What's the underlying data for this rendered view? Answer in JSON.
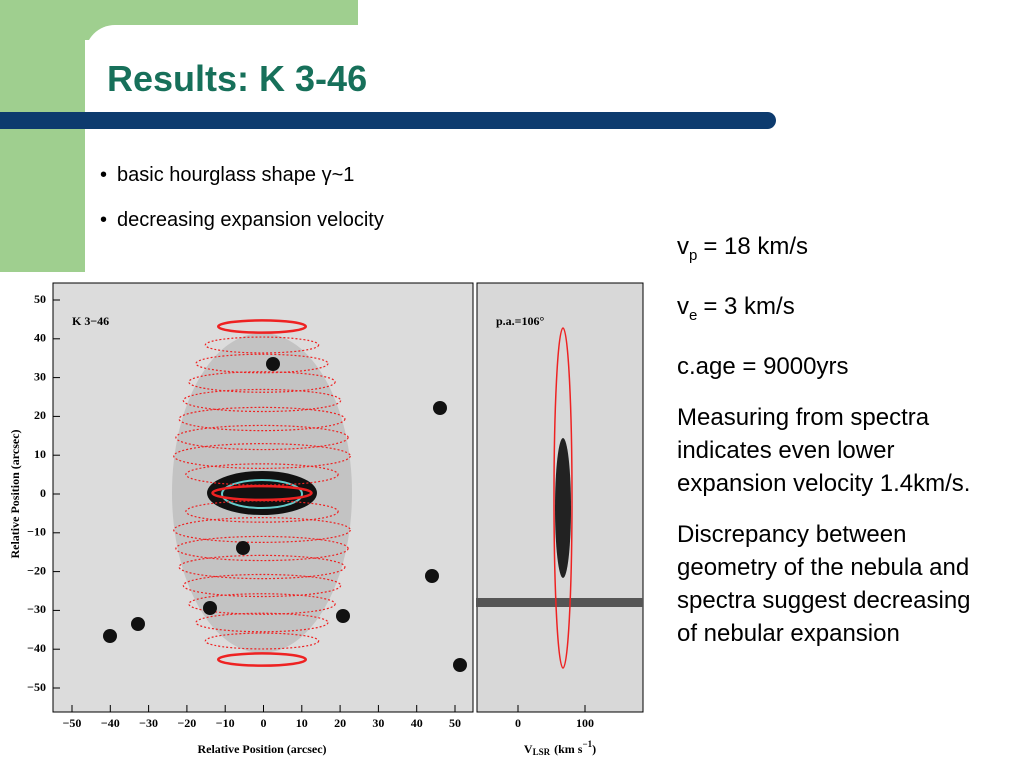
{
  "title": "Results: K 3-46",
  "bullets": [
    "basic hourglass shape γ~1",
    "decreasing expansion velocity"
  ],
  "side": [
    {
      "v": "v",
      "sub": "p",
      "rest": "= 18 km/s"
    },
    {
      "v": "v",
      "sub": "e",
      "rest": "= 3 km/s"
    }
  ],
  "paragraphs": [
    "c.age = 9000yrs",
    "Measuring from spectra indicates even lower expansion velocity 1.4km/s.",
    "Discrepancy between geometry of the nebula and spectra suggest decreasing of nebular expansion"
  ],
  "figure": {
    "left_label": "K 3−46",
    "right_label": "p.a.=106°",
    "y_ticks": [
      "50",
      "40",
      "30",
      "20",
      "10",
      "0",
      "−10",
      "−20",
      "−30",
      "−40",
      "−50"
    ],
    "x_ticks": [
      "−50",
      "−40",
      "−30",
      "−20",
      "−10",
      "0",
      "10",
      "20",
      "30",
      "40",
      "50"
    ],
    "right_x_ticks": [
      "0",
      "100"
    ],
    "y_label": "Relative Position (arcsec)",
    "x_label": "Relative Position (arcsec)",
    "right_x_label": {
      "v": "V",
      "sub": "LSR",
      "mid": "(km s",
      "sup": "−1",
      "end": ")"
    }
  }
}
